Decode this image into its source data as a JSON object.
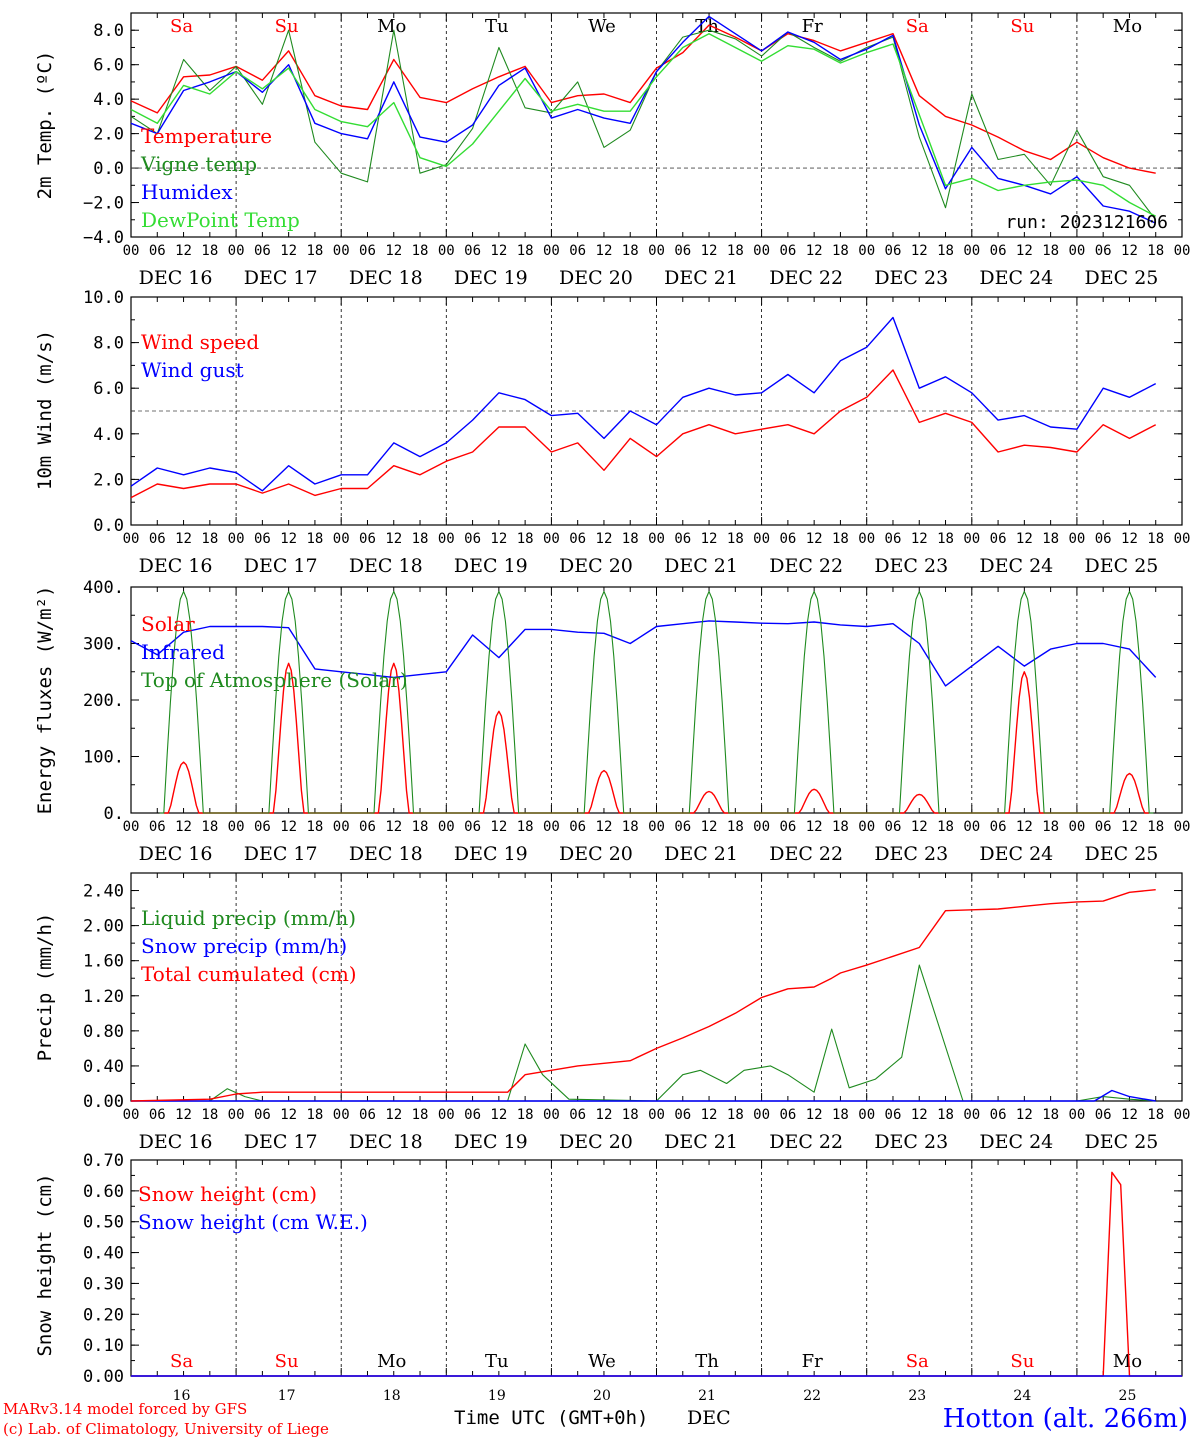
{
  "colors": {
    "red": "#ff0000",
    "green": "#1f8a1f",
    "blue": "#0000ff",
    "lightgreen": "#33dd33",
    "axis": "#000000"
  },
  "days": [
    {
      "abbr": "Sa",
      "weekend": true,
      "label": "DEC 16",
      "num": "16"
    },
    {
      "abbr": "Su",
      "weekend": true,
      "label": "DEC 17",
      "num": "17"
    },
    {
      "abbr": "Mo",
      "weekend": false,
      "label": "DEC 18",
      "num": "18"
    },
    {
      "abbr": "Tu",
      "weekend": false,
      "label": "DEC 19",
      "num": "19"
    },
    {
      "abbr": "We",
      "weekend": false,
      "label": "DEC 20",
      "num": "20"
    },
    {
      "abbr": "Th",
      "weekend": false,
      "label": "DEC 21",
      "num": "21"
    },
    {
      "abbr": "Fr",
      "weekend": false,
      "label": "DEC 22",
      "num": "22"
    },
    {
      "abbr": "Sa",
      "weekend": true,
      "label": "DEC 23",
      "num": "23"
    },
    {
      "abbr": "Su",
      "weekend": true,
      "label": "DEC 24",
      "num": "24"
    },
    {
      "abbr": "Mo",
      "weekend": false,
      "label": "DEC 25",
      "num": "25"
    }
  ],
  "hour_ticks": [
    "00",
    "06",
    "12",
    "18"
  ],
  "footer": {
    "model": "MARv3.14 model forced by GFS",
    "credit": "(c) Lab. of Climatology, University of Liege",
    "xlabel": "Time UTC (GMT+0h)",
    "month": "DEC",
    "station": "Hotton (alt. 266m)"
  },
  "chart_data": [
    {
      "type": "line",
      "ylabel": "2m Temp. (ºC)",
      "ylim": [
        -4,
        9
      ],
      "yticks": [
        "8.0",
        "6.0",
        "4.0",
        "2.0",
        "0.0",
        "−2.0",
        "−4.0"
      ],
      "ytick_values": [
        8,
        6,
        4,
        2,
        0,
        -2,
        -4
      ],
      "ref_line": 0,
      "run_label": "run: 2023121606",
      "x_unit": "hours since DEC 16 00 UTC",
      "series": [
        {
          "name": "Temperature",
          "color": "red",
          "x": [
            0,
            6,
            12,
            18,
            24,
            30,
            36,
            42,
            48,
            54,
            60,
            66,
            72,
            78,
            84,
            90,
            96,
            102,
            108,
            114,
            120,
            126,
            132,
            138,
            144,
            150,
            156,
            162,
            168,
            174,
            180,
            186,
            192,
            198,
            204,
            210,
            216,
            222,
            228,
            234
          ],
          "y": [
            3.9,
            3.2,
            5.3,
            5.4,
            5.9,
            5.1,
            6.8,
            4.2,
            3.6,
            3.4,
            6.3,
            4.1,
            3.8,
            4.6,
            5.3,
            5.9,
            3.8,
            4.2,
            4.3,
            3.8,
            5.8,
            6.7,
            8.3,
            7.6,
            6.8,
            7.8,
            7.4,
            6.8,
            7.3,
            7.8,
            4.2,
            3.0,
            2.5,
            1.8,
            1.0,
            0.5,
            1.5,
            0.6,
            0.0,
            -0.3
          ]
        },
        {
          "name": "Vigne temp",
          "color": "green",
          "x": [
            0,
            6,
            12,
            18,
            24,
            30,
            36,
            42,
            48,
            54,
            60,
            66,
            72,
            78,
            84,
            90,
            96,
            102,
            108,
            114,
            120,
            126,
            132,
            138,
            144,
            150,
            156,
            162,
            168,
            174,
            180,
            186,
            192,
            198,
            204,
            210,
            216,
            222,
            228,
            234
          ],
          "y": [
            3.0,
            2.0,
            6.3,
            4.5,
            5.9,
            3.7,
            8.0,
            1.5,
            -0.3,
            -0.8,
            8.0,
            -0.3,
            0.2,
            2.3,
            7.0,
            3.5,
            3.2,
            5.0,
            1.2,
            2.2,
            5.6,
            7.6,
            8.0,
            7.5,
            6.5,
            7.9,
            7.0,
            6.2,
            7.0,
            7.6,
            1.8,
            -2.3,
            4.3,
            0.5,
            0.8,
            -1.0,
            2.2,
            -0.5,
            -1.0,
            -3.0
          ]
        },
        {
          "name": "Humidex",
          "color": "blue",
          "x": [
            0,
            6,
            12,
            18,
            24,
            30,
            36,
            42,
            48,
            54,
            60,
            66,
            72,
            78,
            84,
            90,
            96,
            102,
            108,
            114,
            120,
            126,
            132,
            138,
            144,
            150,
            156,
            162,
            168,
            174,
            180,
            186,
            192,
            198,
            204,
            210,
            216,
            222,
            228,
            234
          ],
          "y": [
            2.6,
            2.0,
            4.5,
            5.0,
            5.6,
            4.4,
            6.0,
            2.6,
            2.0,
            1.7,
            5.0,
            1.8,
            1.5,
            2.5,
            4.8,
            5.8,
            2.9,
            3.4,
            2.9,
            2.6,
            5.6,
            7.3,
            8.8,
            7.8,
            6.8,
            7.9,
            7.3,
            6.3,
            6.9,
            7.7,
            2.5,
            -1.2,
            1.2,
            -0.6,
            -1.0,
            -1.5,
            -0.5,
            -2.2,
            -2.5,
            -3.2
          ]
        },
        {
          "name": "DewPoint Temp",
          "color": "lightgreen",
          "x": [
            0,
            6,
            12,
            18,
            24,
            30,
            36,
            42,
            48,
            54,
            60,
            66,
            72,
            78,
            84,
            90,
            96,
            102,
            108,
            114,
            120,
            126,
            132,
            138,
            144,
            150,
            156,
            162,
            168,
            174,
            180,
            186,
            192,
            198,
            204,
            210,
            216,
            222,
            228,
            234
          ],
          "y": [
            3.4,
            2.6,
            4.8,
            4.3,
            5.6,
            4.6,
            5.8,
            3.4,
            2.7,
            2.4,
            3.8,
            0.6,
            0.1,
            1.4,
            3.3,
            5.2,
            3.3,
            3.7,
            3.3,
            3.3,
            5.3,
            7.0,
            7.8,
            7.0,
            6.2,
            7.1,
            6.9,
            6.1,
            6.7,
            7.2,
            3.1,
            -1.0,
            -0.6,
            -1.3,
            -1.0,
            -0.8,
            -0.7,
            -1.0,
            -2.0,
            -2.8
          ]
        }
      ]
    },
    {
      "type": "line",
      "ylabel": "10m Wind (m/s)",
      "ylim": [
        0,
        10
      ],
      "yticks": [
        "10.0",
        "8.0",
        "6.0",
        "4.0",
        "2.0",
        "0.0"
      ],
      "ytick_values": [
        10,
        8,
        6,
        4,
        2,
        0
      ],
      "ref_line": 5,
      "series": [
        {
          "name": "Wind speed",
          "color": "red",
          "x": [
            0,
            6,
            12,
            18,
            24,
            30,
            36,
            42,
            48,
            54,
            60,
            66,
            72,
            78,
            84,
            90,
            96,
            102,
            108,
            114,
            120,
            126,
            132,
            138,
            144,
            150,
            156,
            162,
            168,
            174,
            180,
            186,
            192,
            198,
            204,
            210,
            216,
            222,
            228,
            234
          ],
          "y": [
            1.2,
            1.8,
            1.6,
            1.8,
            1.8,
            1.4,
            1.8,
            1.3,
            1.6,
            1.6,
            2.6,
            2.2,
            2.8,
            3.2,
            4.3,
            4.3,
            3.2,
            3.6,
            2.4,
            3.8,
            3.0,
            4.0,
            4.4,
            4.0,
            4.2,
            4.4,
            4.0,
            5.0,
            5.6,
            6.8,
            4.5,
            4.9,
            4.5,
            3.2,
            3.5,
            3.4,
            3.2,
            4.4,
            3.8,
            4.4
          ]
        },
        {
          "name": "Wind gust",
          "color": "blue",
          "x": [
            0,
            6,
            12,
            18,
            24,
            30,
            36,
            42,
            48,
            54,
            60,
            66,
            72,
            78,
            84,
            90,
            96,
            102,
            108,
            114,
            120,
            126,
            132,
            138,
            144,
            150,
            156,
            162,
            168,
            174,
            180,
            186,
            192,
            198,
            204,
            210,
            216,
            222,
            228,
            234
          ],
          "y": [
            1.7,
            2.5,
            2.2,
            2.5,
            2.3,
            1.5,
            2.6,
            1.8,
            2.2,
            2.2,
            3.6,
            3.0,
            3.6,
            4.6,
            5.8,
            5.5,
            4.8,
            4.9,
            3.8,
            5.0,
            4.4,
            5.6,
            6.0,
            5.7,
            5.8,
            6.6,
            5.8,
            7.2,
            7.8,
            9.1,
            6.0,
            6.5,
            5.8,
            4.6,
            4.8,
            4.3,
            4.2,
            6.0,
            5.6,
            6.2
          ]
        }
      ]
    },
    {
      "type": "line",
      "ylabel": "Energy fluxes (W/m²)",
      "ylim": [
        0,
        400
      ],
      "yticks": [
        "400.",
        "300.",
        "200.",
        "100.",
        "0."
      ],
      "ytick_values": [
        400,
        300,
        200,
        100,
        0
      ],
      "series": [
        {
          "name": "Solar",
          "color": "red",
          "peaks": [
            90,
            265,
            265,
            180,
            75,
            38,
            42,
            33,
            250,
            70
          ]
        },
        {
          "name": "Infrared",
          "color": "blue",
          "x": [
            0,
            6,
            12,
            18,
            24,
            30,
            36,
            42,
            48,
            54,
            60,
            66,
            72,
            78,
            84,
            90,
            96,
            102,
            108,
            114,
            120,
            126,
            132,
            138,
            144,
            150,
            156,
            162,
            168,
            174,
            180,
            186,
            192,
            198,
            204,
            210,
            216,
            222,
            228,
            234
          ],
          "y": [
            305,
            280,
            320,
            330,
            330,
            330,
            328,
            255,
            250,
            245,
            240,
            245,
            250,
            315,
            275,
            325,
            325,
            320,
            318,
            300,
            330,
            335,
            340,
            338,
            336,
            335,
            338,
            333,
            330,
            335,
            300,
            225,
            260,
            295,
            260,
            290,
            300,
            300,
            290,
            240
          ]
        },
        {
          "name": "Top of Atmosphere (Solar)",
          "color": "green",
          "peaks": [
            392,
            392,
            392,
            392,
            392,
            392,
            392,
            392,
            392,
            392
          ]
        }
      ]
    },
    {
      "type": "line",
      "ylabel": "Precip (mm/h)",
      "ylim": [
        0,
        2.6
      ],
      "yticks": [
        "2.40",
        "2.00",
        "1.60",
        "1.20",
        "0.80",
        "0.40",
        "0.00"
      ],
      "ytick_values": [
        2.4,
        2.0,
        1.6,
        1.2,
        0.8,
        0.4,
        0.0
      ],
      "series": [
        {
          "name": "Liquid precip (mm/h)",
          "color": "green",
          "x": [
            0,
            18,
            22,
            26,
            30,
            60,
            80,
            86,
            90,
            94,
            100,
            120,
            126,
            130,
            136,
            140,
            146,
            150,
            156,
            160,
            164,
            170,
            176,
            180,
            190,
            200,
            216,
            222,
            228,
            234
          ],
          "y": [
            0,
            0,
            0.14,
            0.05,
            0,
            0,
            0,
            0,
            0.65,
            0.3,
            0.02,
            0,
            0.3,
            0.35,
            0.2,
            0.35,
            0.4,
            0.3,
            0.1,
            0.82,
            0.15,
            0.25,
            0.5,
            1.55,
            0,
            0,
            0,
            0.05,
            0.02,
            0
          ]
        },
        {
          "name": "Snow precip (mm/h)",
          "color": "blue",
          "x": [
            0,
            220,
            224,
            228,
            234
          ],
          "y": [
            0,
            0,
            0.12,
            0.05,
            0
          ]
        },
        {
          "name": "Total cumulated (cm)",
          "color": "red",
          "x": [
            0,
            18,
            24,
            30,
            36,
            48,
            72,
            80,
            86,
            90,
            96,
            102,
            108,
            114,
            120,
            126,
            132,
            138,
            144,
            150,
            156,
            160,
            162,
            168,
            174,
            180,
            186,
            192,
            198,
            204,
            210,
            216,
            222,
            228,
            234
          ],
          "y": [
            0,
            0.02,
            0.08,
            0.1,
            0.1,
            0.1,
            0.1,
            0.1,
            0.1,
            0.3,
            0.35,
            0.4,
            0.43,
            0.46,
            0.6,
            0.72,
            0.85,
            1.0,
            1.18,
            1.28,
            1.3,
            1.4,
            1.46,
            1.55,
            1.65,
            1.75,
            2.17,
            2.18,
            2.19,
            2.22,
            2.25,
            2.27,
            2.28,
            2.38,
            2.41
          ]
        }
      ]
    },
    {
      "type": "line",
      "ylabel": "Snow height (cm)",
      "ylim": [
        0,
        0.7
      ],
      "yticks": [
        "0.70",
        "0.60",
        "0.50",
        "0.40",
        "0.30",
        "0.20",
        "0.10",
        "0.00"
      ],
      "ytick_values": [
        0.7,
        0.6,
        0.5,
        0.4,
        0.3,
        0.2,
        0.1,
        0.0
      ],
      "series": [
        {
          "name": "Snow height (cm)",
          "color": "red",
          "x": [
            0,
            222,
            224,
            226,
            228,
            240
          ],
          "y": [
            0,
            0,
            0.66,
            0.62,
            0,
            0
          ]
        },
        {
          "name": "Snow height (cm W.E.)",
          "color": "blue",
          "x": [
            0,
            240
          ],
          "y": [
            0,
            0
          ]
        }
      ]
    }
  ]
}
